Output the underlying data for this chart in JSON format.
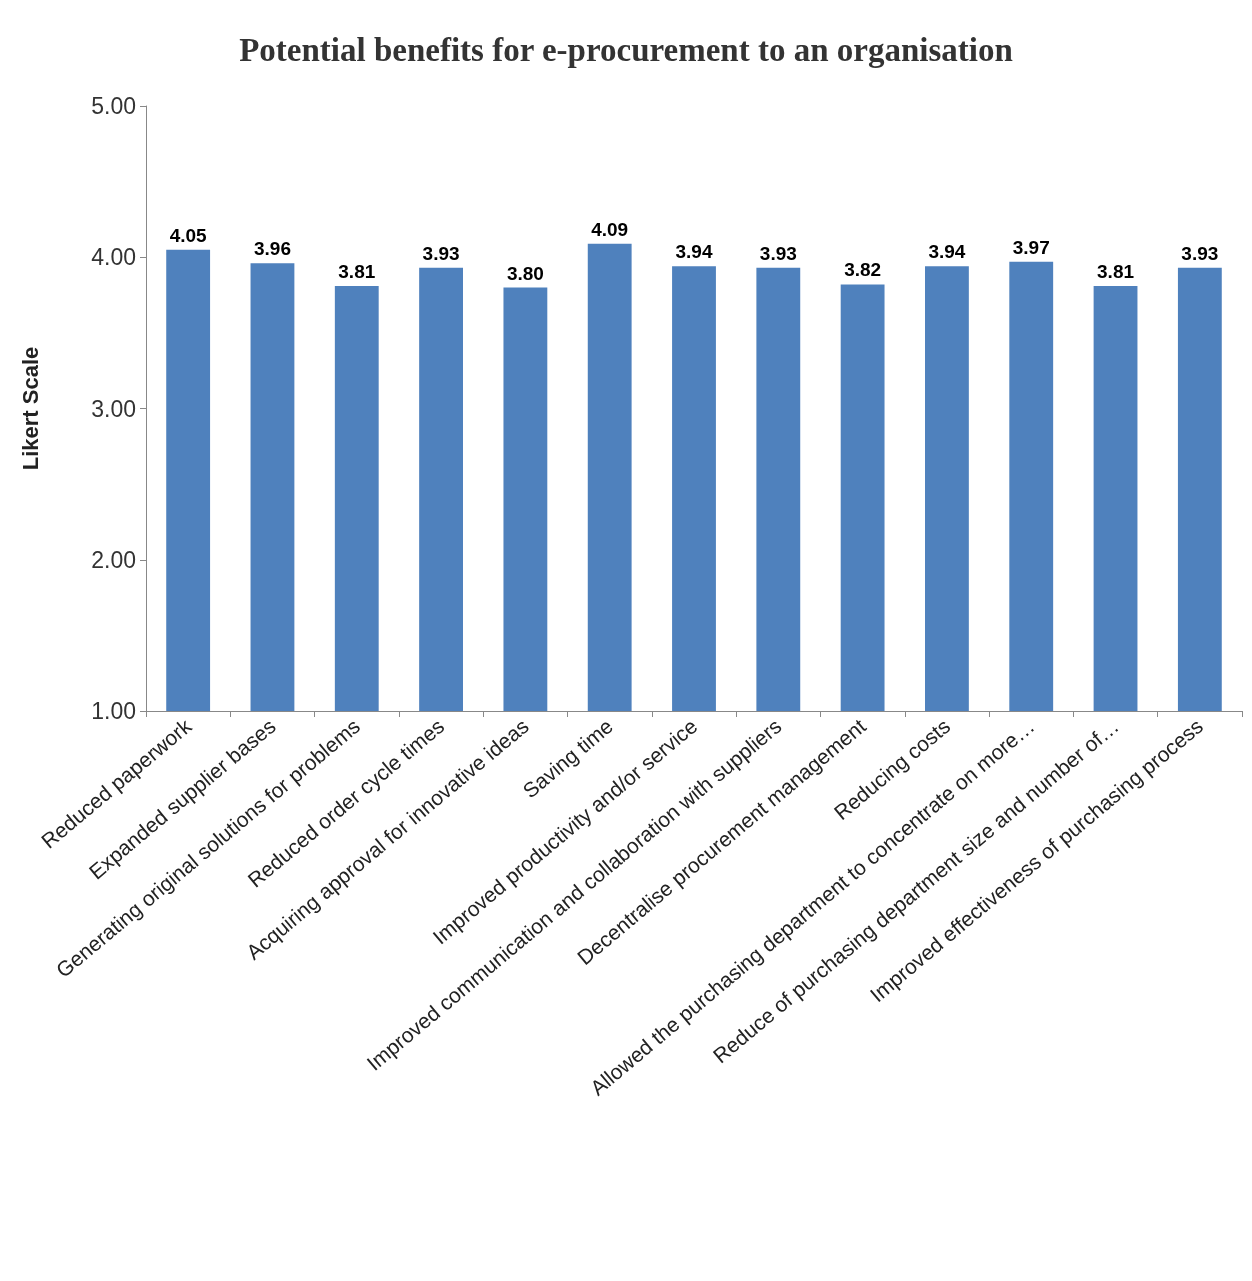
{
  "chart_data": {
    "type": "bar",
    "title": "Potential benefits for e-procurement to an organisation",
    "ylabel": "Likert Scale",
    "categories": [
      "Reduced paperwork",
      "Expanded supplier bases",
      "Generating original solutions for problems",
      "Reduced order cycle times",
      "Acquiring approval for innovative ideas",
      "Saving time",
      "Improved productivity and/or service",
      "Improved communication and collaboration with suppliers",
      "Decentralise procurement management",
      "Reducing costs",
      "Allowed the purchasing department to concentrate on more…",
      "Reduce of purchasing department size and number of…",
      "Improved effectiveness of purchasing process"
    ],
    "values": [
      4.05,
      3.96,
      3.81,
      3.93,
      3.8,
      4.09,
      3.94,
      3.93,
      3.82,
      3.94,
      3.97,
      3.81,
      3.93
    ],
    "color": "#4f81bd",
    "ylim": [
      1,
      5
    ],
    "yticks": [
      {
        "value": 1,
        "label": "1.00"
      },
      {
        "value": 2,
        "label": "2.00"
      },
      {
        "value": 3,
        "label": "3.00"
      },
      {
        "value": 4,
        "label": "4.00"
      },
      {
        "value": 5,
        "label": "5.00"
      }
    ],
    "value_labels": [
      "4.05",
      "3.96",
      "3.81",
      "3.93",
      "3.80",
      "4.09",
      "3.94",
      "3.93",
      "3.82",
      "3.94",
      "3.97",
      "3.81",
      "3.93"
    ],
    "grid": false
  }
}
